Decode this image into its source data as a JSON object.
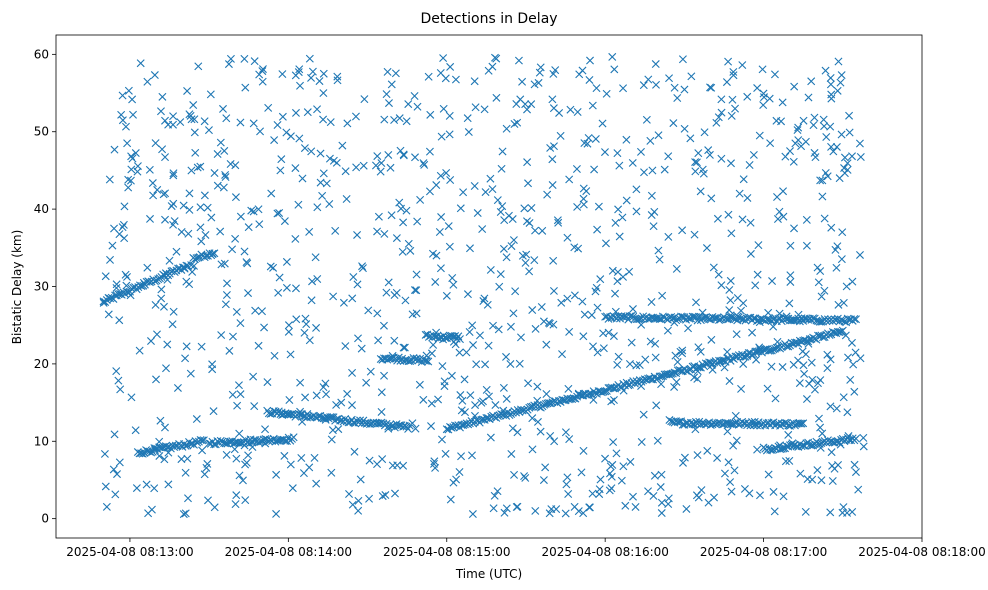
{
  "chart_data": {
    "type": "scatter",
    "title": "Detections in Delay",
    "xlabel": "Time (UTC)",
    "ylabel": "Bistatic Delay (km)",
    "x_unit": "seconds after 2025-04-08 08:13:00",
    "xlim": [
      -28,
      300
    ],
    "ylim": [
      -2.5,
      62.5
    ],
    "xticks": [
      {
        "value": 0,
        "label": "2025-04-08 08:13:00"
      },
      {
        "value": 60,
        "label": "2025-04-08 08:14:00"
      },
      {
        "value": 120,
        "label": "2025-04-08 08:15:00"
      },
      {
        "value": 180,
        "label": "2025-04-08 08:16:00"
      },
      {
        "value": 240,
        "label": "2025-04-08 08:17:00"
      },
      {
        "value": 300,
        "label": "2025-04-08 08:18:00"
      }
    ],
    "yticks": [
      0,
      10,
      20,
      30,
      40,
      50,
      60
    ],
    "marker": "x",
    "color": "#1f77b4",
    "series": [
      {
        "name": "rising track A",
        "x_start": -10,
        "x_end": 22,
        "y_start": 28.0,
        "y_end": 32.7
      },
      {
        "name": "rising track A2",
        "x_start": 24,
        "x_end": 32,
        "y_start": 33.6,
        "y_end": 34.4
      },
      {
        "name": "rising track B",
        "x_start": 120,
        "x_end": 270,
        "y_start": 11.6,
        "y_end": 24.2
      },
      {
        "name": "track near 10 km (start)",
        "x_start": 3,
        "x_end": 28,
        "y_start": 8.5,
        "y_end": 10.0
      },
      {
        "name": "track near 10 km (dip)",
        "x_start": 30,
        "x_end": 62,
        "y_start": 9.8,
        "y_end": 10.3
      },
      {
        "name": "track 12-13 km",
        "x_start": 52,
        "x_end": 106,
        "y_start": 13.8,
        "y_end": 11.8
      },
      {
        "name": "track 20.5 km",
        "x_start": 95,
        "x_end": 113,
        "y_start": 20.8,
        "y_end": 20.4
      },
      {
        "name": "track 23.5 km",
        "x_start": 112,
        "x_end": 125,
        "y_start": 23.6,
        "y_end": 23.4
      },
      {
        "name": "track 26 km",
        "x_start": 180,
        "x_end": 275,
        "y_start": 26.0,
        "y_end": 25.6
      },
      {
        "name": "track 12.5 km",
        "x_start": 205,
        "x_end": 255,
        "y_start": 12.4,
        "y_end": 12.2
      },
      {
        "name": "track 9.5 km",
        "x_start": 240,
        "x_end": 275,
        "y_start": 9.0,
        "y_end": 10.3
      }
    ]
  }
}
